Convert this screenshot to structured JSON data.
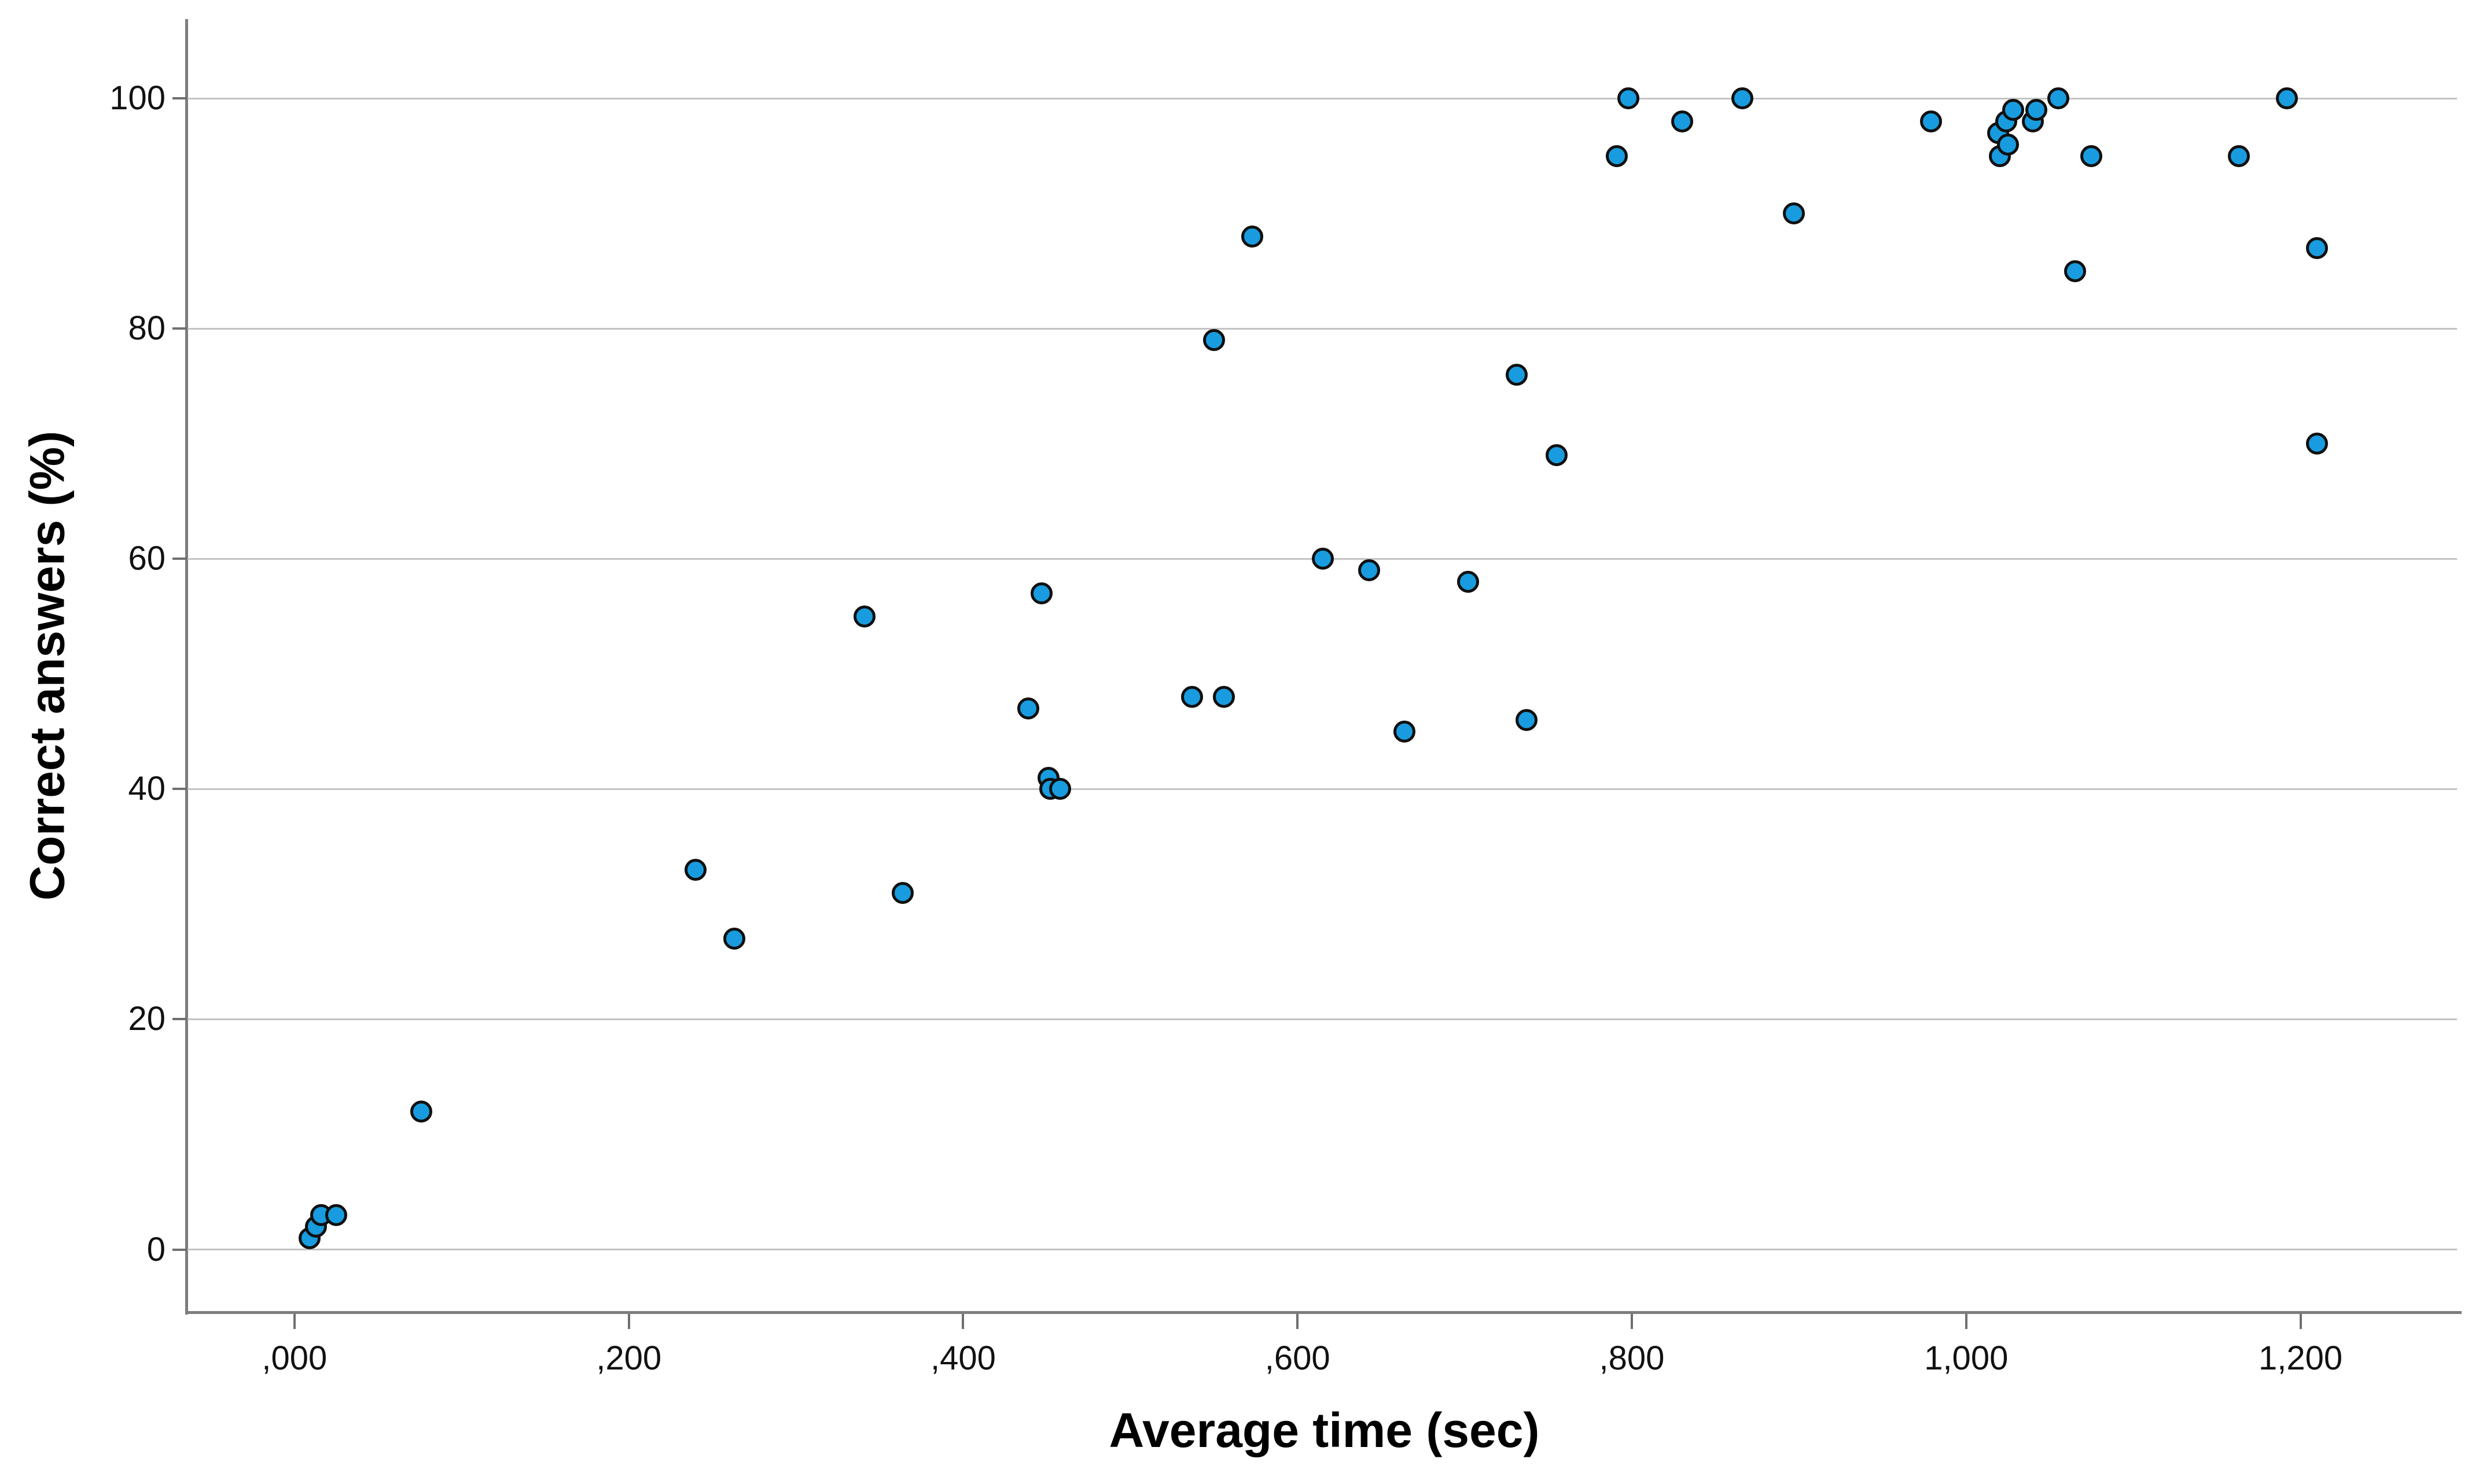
{
  "chart_data": {
    "type": "scatter",
    "title": "",
    "xlabel": "Average time (sec)",
    "ylabel": "Correct answers (%)",
    "xlim": [
      -0.064,
      1.295
    ],
    "ylim": [
      -5.4,
      106.9
    ],
    "grid": "horizontal-only",
    "legend": "none",
    "x_ticks": {
      "values": [
        0,
        0.2,
        0.4,
        0.6,
        0.8,
        1.0,
        1.2
      ],
      "labels": [
        ",000",
        ",200",
        ",400",
        ",600",
        ",800",
        "1,000",
        "1,200"
      ]
    },
    "y_ticks": {
      "values": [
        0,
        20,
        40,
        60,
        80,
        100
      ],
      "labels": [
        "0",
        "20",
        "40",
        "60",
        "80",
        "100"
      ]
    },
    "points": [
      [
        0.009,
        1
      ],
      [
        0.013,
        2
      ],
      [
        0.016,
        3
      ],
      [
        0.025,
        3
      ],
      [
        0.076,
        12
      ],
      [
        0.24,
        33
      ],
      [
        0.263,
        27
      ],
      [
        0.341,
        55
      ],
      [
        0.364,
        31
      ],
      [
        0.439,
        47
      ],
      [
        0.447,
        57
      ],
      [
        0.451,
        41
      ],
      [
        0.452,
        40
      ],
      [
        0.458,
        40
      ],
      [
        0.537,
        48
      ],
      [
        0.55,
        79
      ],
      [
        0.556,
        48
      ],
      [
        0.573,
        88
      ],
      [
        0.615,
        60
      ],
      [
        0.643,
        59
      ],
      [
        0.664,
        45
      ],
      [
        0.702,
        58
      ],
      [
        0.731,
        76
      ],
      [
        0.737,
        46
      ],
      [
        0.755,
        69
      ],
      [
        0.791,
        95
      ],
      [
        0.798,
        100
      ],
      [
        0.83,
        98
      ],
      [
        0.866,
        100
      ],
      [
        0.897,
        90
      ],
      [
        0.979,
        98
      ],
      [
        1.019,
        97
      ],
      [
        1.02,
        95
      ],
      [
        1.024,
        98
      ],
      [
        1.025,
        96
      ],
      [
        1.028,
        99
      ],
      [
        1.04,
        98
      ],
      [
        1.042,
        99
      ],
      [
        1.055,
        100
      ],
      [
        1.065,
        85
      ],
      [
        1.075,
        95
      ],
      [
        1.163,
        95
      ],
      [
        1.192,
        100
      ],
      [
        1.21,
        87
      ],
      [
        1.21,
        70
      ]
    ],
    "colors": {
      "dot_fill": "#189CDF",
      "dot_stroke": "#101010",
      "gridline": "#c3c3c3",
      "axis_frame": "#7d7d7d",
      "tick_mark": "#6f6f6f",
      "label_text": "#111111",
      "title_text": "#000000",
      "background": "#ffffff"
    }
  }
}
